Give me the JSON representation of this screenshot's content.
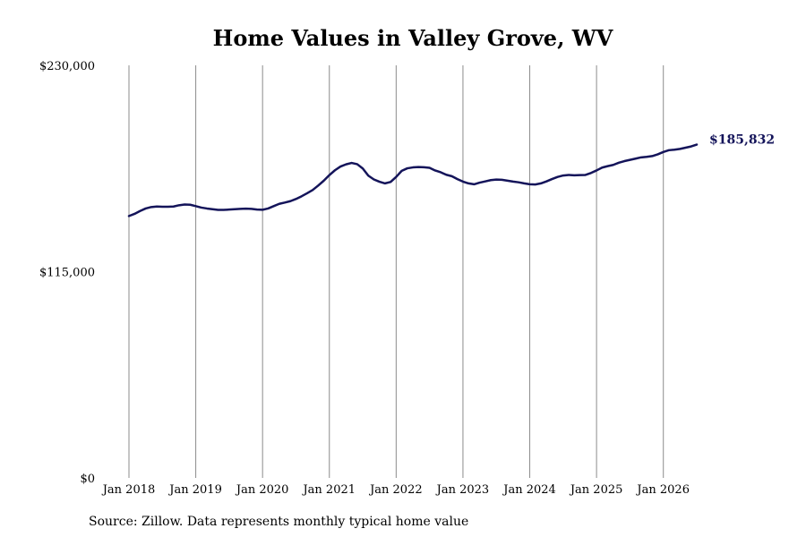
{
  "chart_data": {
    "type": "line",
    "title": "Home Values in Valley Grove, WV",
    "source": "Source: Zillow. Data represents monthly typical home value",
    "x_ticks": [
      "Jan 2018",
      "Jan 2019",
      "Jan 2020",
      "Jan 2021",
      "Jan 2022",
      "Jan 2023",
      "Jan 2024",
      "Jan 2025",
      "Jan 2026"
    ],
    "y_ticks": [
      {
        "value": 0,
        "label": "$0"
      },
      {
        "value": 115000,
        "label": "$115,000"
      },
      {
        "value": 230000,
        "label": "$230,000"
      }
    ],
    "ylim": [
      0,
      230000
    ],
    "xlim": [
      "2018-01",
      "2026-07"
    ],
    "grid": "vertical",
    "line_color": "#14145a",
    "end_label": "$185,832",
    "series": [
      {
        "points": [
          [
            "2018-01",
            146000
          ],
          [
            "2018-02",
            147200
          ],
          [
            "2018-03",
            148800
          ],
          [
            "2018-04",
            150200
          ],
          [
            "2018-05",
            151000
          ],
          [
            "2018-06",
            151300
          ],
          [
            "2018-07",
            151200
          ],
          [
            "2018-08",
            151200
          ],
          [
            "2018-09",
            151300
          ],
          [
            "2018-10",
            152000
          ],
          [
            "2018-11",
            152400
          ],
          [
            "2018-12",
            152300
          ],
          [
            "2019-01",
            151500
          ],
          [
            "2019-02",
            150700
          ],
          [
            "2019-03",
            150200
          ],
          [
            "2019-04",
            149800
          ],
          [
            "2019-05",
            149400
          ],
          [
            "2019-06",
            149400
          ],
          [
            "2019-07",
            149600
          ],
          [
            "2019-08",
            149800
          ],
          [
            "2019-09",
            150000
          ],
          [
            "2019-10",
            150100
          ],
          [
            "2019-11",
            150000
          ],
          [
            "2019-12",
            149600
          ],
          [
            "2020-01",
            149500
          ],
          [
            "2020-02",
            150200
          ],
          [
            "2020-03",
            151500
          ],
          [
            "2020-04",
            152800
          ],
          [
            "2020-05",
            153500
          ],
          [
            "2020-06",
            154300
          ],
          [
            "2020-07",
            155500
          ],
          [
            "2020-08",
            157000
          ],
          [
            "2020-09",
            158700
          ],
          [
            "2020-10",
            160500
          ],
          [
            "2020-11",
            163000
          ],
          [
            "2020-12",
            165700
          ],
          [
            "2021-01",
            168800
          ],
          [
            "2021-02",
            171500
          ],
          [
            "2021-03",
            173600
          ],
          [
            "2021-04",
            174800
          ],
          [
            "2021-05",
            175600
          ],
          [
            "2021-06",
            174900
          ],
          [
            "2021-07",
            172500
          ],
          [
            "2021-08",
            168500
          ],
          [
            "2021-09",
            166400
          ],
          [
            "2021-10",
            165100
          ],
          [
            "2021-11",
            164200
          ],
          [
            "2021-12",
            165000
          ],
          [
            "2022-01",
            167800
          ],
          [
            "2022-02",
            171200
          ],
          [
            "2022-03",
            172600
          ],
          [
            "2022-04",
            173100
          ],
          [
            "2022-05",
            173300
          ],
          [
            "2022-06",
            173200
          ],
          [
            "2022-07",
            172900
          ],
          [
            "2022-08",
            171400
          ],
          [
            "2022-09",
            170400
          ],
          [
            "2022-10",
            169000
          ],
          [
            "2022-11",
            168200
          ],
          [
            "2022-12",
            166600
          ],
          [
            "2023-01",
            165200
          ],
          [
            "2023-02",
            164200
          ],
          [
            "2023-03",
            163700
          ],
          [
            "2023-04",
            164600
          ],
          [
            "2023-05",
            165300
          ],
          [
            "2023-06",
            166000
          ],
          [
            "2023-07",
            166300
          ],
          [
            "2023-08",
            166200
          ],
          [
            "2023-09",
            165700
          ],
          [
            "2023-10",
            165200
          ],
          [
            "2023-11",
            164800
          ],
          [
            "2023-12",
            164200
          ],
          [
            "2024-01",
            163700
          ],
          [
            "2024-02",
            163600
          ],
          [
            "2024-03",
            164200
          ],
          [
            "2024-04",
            165300
          ],
          [
            "2024-05",
            166600
          ],
          [
            "2024-06",
            167800
          ],
          [
            "2024-07",
            168600
          ],
          [
            "2024-08",
            168900
          ],
          [
            "2024-09",
            168700
          ],
          [
            "2024-10",
            168800
          ],
          [
            "2024-11",
            168900
          ],
          [
            "2024-12",
            170000
          ],
          [
            "2025-01",
            171400
          ],
          [
            "2025-02",
            173000
          ],
          [
            "2025-03",
            173800
          ],
          [
            "2025-04",
            174500
          ],
          [
            "2025-05",
            175700
          ],
          [
            "2025-06",
            176600
          ],
          [
            "2025-07",
            177300
          ],
          [
            "2025-08",
            178000
          ],
          [
            "2025-09",
            178700
          ],
          [
            "2025-10",
            179000
          ],
          [
            "2025-11",
            179400
          ],
          [
            "2025-12",
            180400
          ],
          [
            "2026-01",
            181700
          ],
          [
            "2026-02",
            182700
          ],
          [
            "2026-03",
            183000
          ],
          [
            "2026-04",
            183400
          ],
          [
            "2026-05",
            184100
          ],
          [
            "2026-06",
            184800
          ],
          [
            "2026-07",
            185832
          ]
        ]
      }
    ]
  }
}
